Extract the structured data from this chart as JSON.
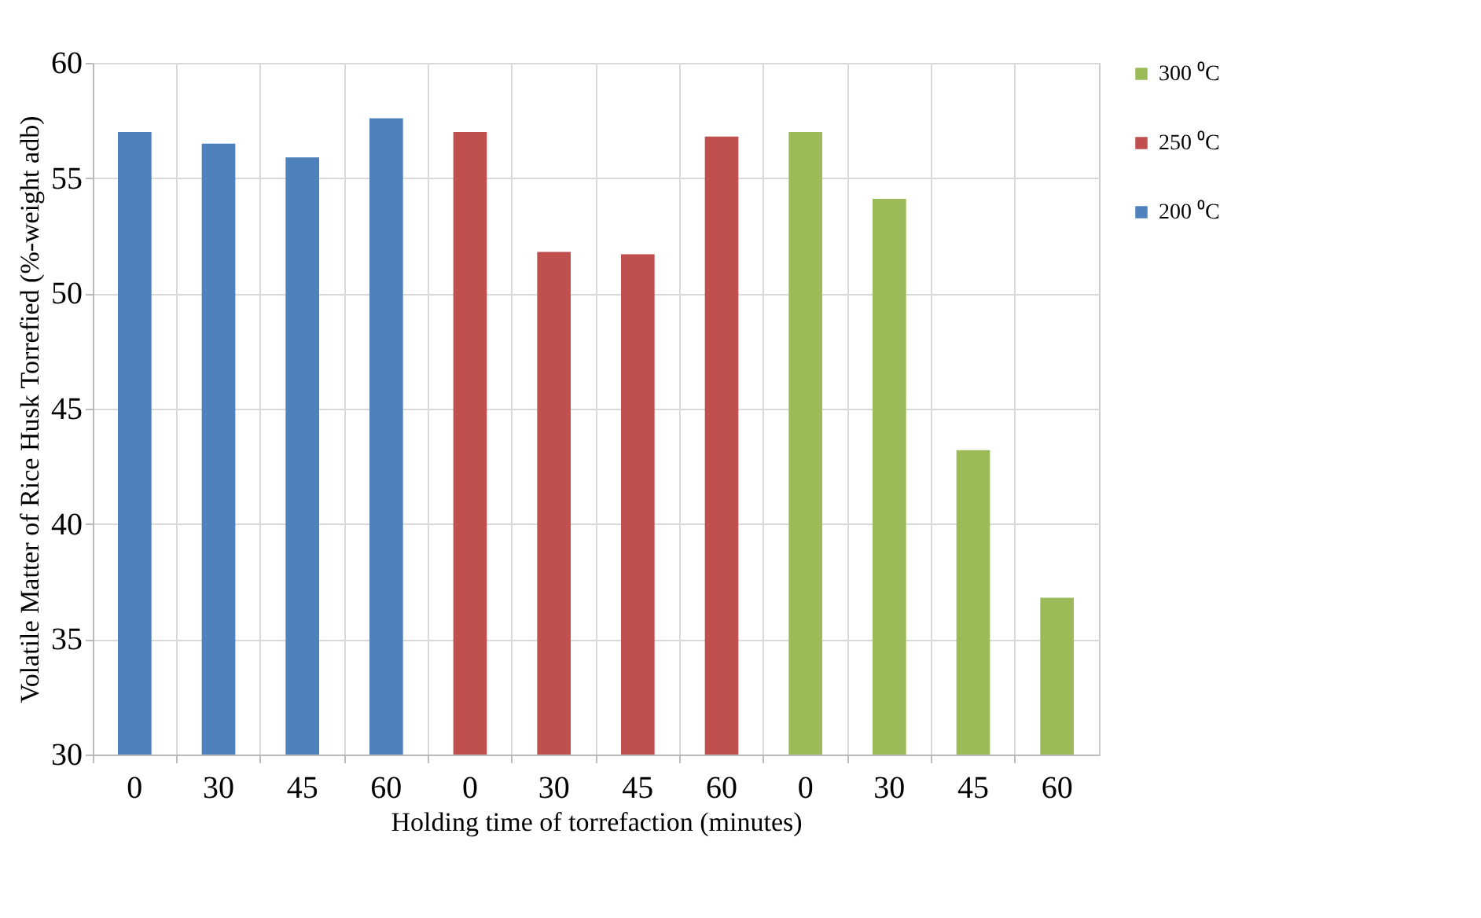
{
  "chart_data": {
    "type": "bar",
    "xlabel": "Holding time of torrefaction (minutes)",
    "ylabel": "Volatile Matter of  Rice Husk Torrefied  (%-weight adb)",
    "categories": [
      "0",
      "30",
      "45",
      "60",
      "0",
      "30",
      "45",
      "60",
      "0",
      "30",
      "45",
      "60"
    ],
    "series": [
      {
        "name": "300 ⁰C",
        "color": "#9bbb59",
        "values": [
          null,
          null,
          null,
          null,
          null,
          null,
          null,
          null,
          57.0,
          54.1,
          43.2,
          36.8
        ]
      },
      {
        "name": "250 ⁰C",
        "color": "#c0504d",
        "values": [
          null,
          null,
          null,
          null,
          57.0,
          51.8,
          51.7,
          56.8,
          null,
          null,
          null,
          null
        ]
      },
      {
        "name": "200 ⁰C",
        "color": "#4f81bd",
        "values": [
          57.0,
          56.5,
          55.9,
          57.6,
          null,
          null,
          null,
          null,
          null,
          null,
          null,
          null
        ]
      }
    ],
    "ylim": [
      30,
      60
    ],
    "yticks": [
      30,
      35,
      40,
      45,
      50,
      55,
      60
    ],
    "grid": true,
    "legend": "right"
  }
}
